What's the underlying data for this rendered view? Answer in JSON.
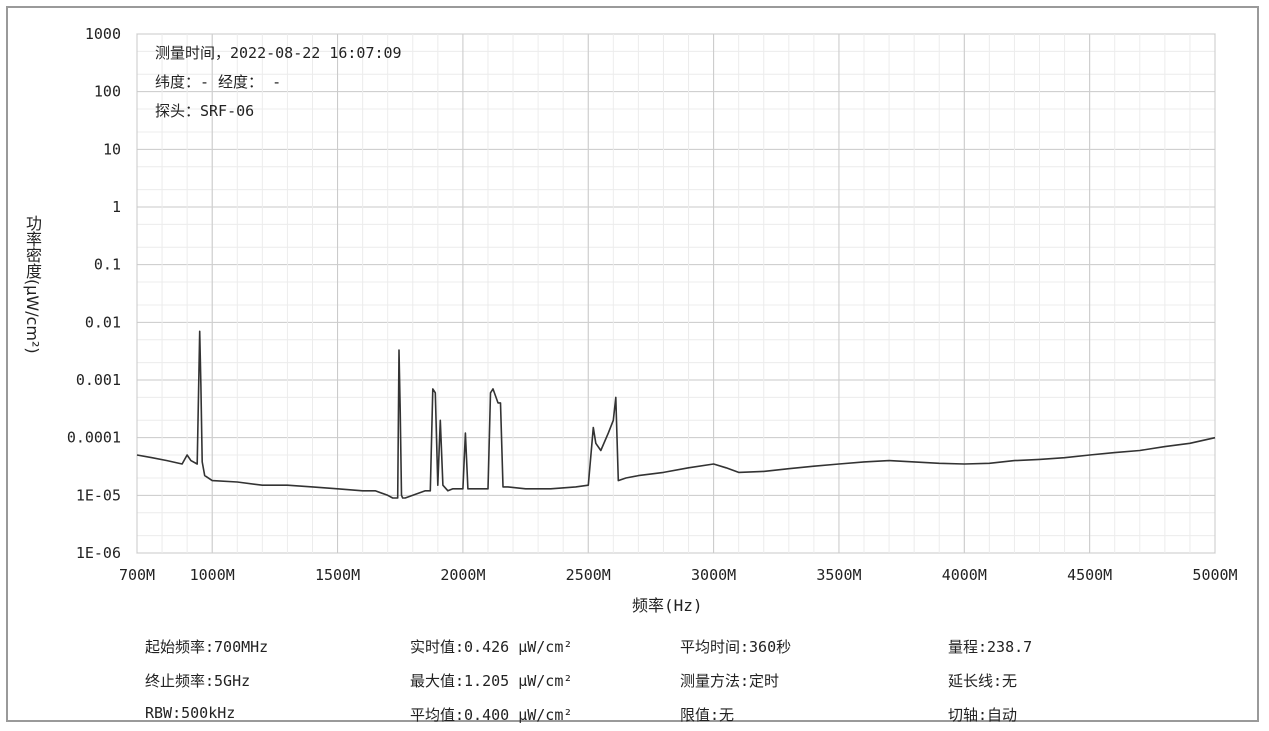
{
  "chart_data": {
    "type": "line",
    "ylabel": "功率密度(μW/cm²)",
    "xlabel": "频率(Hz)",
    "x_range": [
      700,
      5000
    ],
    "y_scale": "log",
    "y_range": [
      1e-06,
      1000
    ],
    "grid": true,
    "x_ticks": [
      "700M",
      "1000M",
      "1500M",
      "2000M",
      "2500M",
      "3000M",
      "3500M",
      "4000M",
      "4500M",
      "5000M"
    ],
    "x_tick_values": [
      700,
      1000,
      1500,
      2000,
      2500,
      3000,
      3500,
      4000,
      4500,
      5000
    ],
    "y_ticks": [
      "1000",
      "100",
      "10",
      "1",
      "0.1",
      "0.01",
      "0.001",
      "0.0001",
      "1E-05",
      "1E-06"
    ],
    "y_tick_values": [
      1000,
      100,
      10,
      1,
      0.1,
      0.01,
      0.001,
      0.0001,
      1e-05,
      1e-06
    ],
    "series": [
      {
        "color": "#333333",
        "x": [
          700,
          760,
          820,
          880,
          900,
          915,
          940,
          950,
          955,
          960,
          970,
          1000,
          1100,
          1200,
          1300,
          1400,
          1500,
          1600,
          1650,
          1700,
          1720,
          1740,
          1745,
          1750,
          1755,
          1760,
          1770,
          1800,
          1850,
          1870,
          1880,
          1890,
          1900,
          1910,
          1920,
          1940,
          1960,
          2000,
          2010,
          2020,
          2030,
          2050,
          2080,
          2100,
          2110,
          2120,
          2140,
          2150,
          2160,
          2180,
          2250,
          2350,
          2450,
          2500,
          2520,
          2530,
          2550,
          2580,
          2600,
          2610,
          2620,
          2650,
          2700,
          2800,
          2900,
          3000,
          3050,
          3100,
          3200,
          3300,
          3400,
          3500,
          3600,
          3700,
          3800,
          3900,
          4000,
          4100,
          4200,
          4300,
          4400,
          4500,
          4600,
          4700,
          4800,
          4900,
          5000
        ],
        "y": [
          5e-05,
          4.5e-05,
          4e-05,
          3.5e-05,
          5e-05,
          4e-05,
          3.5e-05,
          0.007,
          0.0008,
          3.8e-05,
          2.2e-05,
          1.8e-05,
          1.7e-05,
          1.5e-05,
          1.5e-05,
          1.4e-05,
          1.3e-05,
          1.2e-05,
          1.2e-05,
          1e-05,
          9e-06,
          9e-06,
          0.0033,
          0.0003,
          1e-05,
          9e-06,
          9e-06,
          1e-05,
          1.2e-05,
          1.2e-05,
          0.0007,
          0.0006,
          1.5e-05,
          0.0002,
          1.5e-05,
          1.2e-05,
          1.3e-05,
          1.3e-05,
          0.00012,
          1.3e-05,
          1.3e-05,
          1.3e-05,
          1.3e-05,
          1.3e-05,
          0.0006,
          0.0007,
          0.0004,
          0.0004,
          1.4e-05,
          1.4e-05,
          1.3e-05,
          1.3e-05,
          1.4e-05,
          1.5e-05,
          0.00015,
          8e-05,
          6e-05,
          0.00012,
          0.0002,
          0.0005,
          1.8e-05,
          2e-05,
          2.2e-05,
          2.5e-05,
          3e-05,
          3.5e-05,
          3e-05,
          2.5e-05,
          2.6e-05,
          2.9e-05,
          3.2e-05,
          3.5e-05,
          3.8e-05,
          4e-05,
          3.8e-05,
          3.6e-05,
          3.5e-05,
          3.6e-05,
          4e-05,
          4.2e-05,
          4.5e-05,
          5e-05,
          5.5e-05,
          6e-05,
          7e-05,
          8e-05,
          0.0001
        ]
      }
    ]
  },
  "info": {
    "time": "测量时间，2022-08-22 16:07:09",
    "location": "纬度：- 经度： -",
    "probe": "探头：SRF-06"
  },
  "footer": {
    "start_freq": "起始频率:700MHz",
    "stop_freq": "终止频率:5GHz",
    "rbw": "RBW:500kHz",
    "realtime": "实时值:0.426 μW/cm²",
    "max": "最大值:1.205 μW/cm²",
    "avg": "平均值:0.400 μW/cm²",
    "avg_time": "平均时间:360秒",
    "method": "测量方法:定时",
    "limit": "限值:无",
    "range": "量程:238.7",
    "extension": "延长线:无",
    "cut_axis": "切轴:自动"
  }
}
